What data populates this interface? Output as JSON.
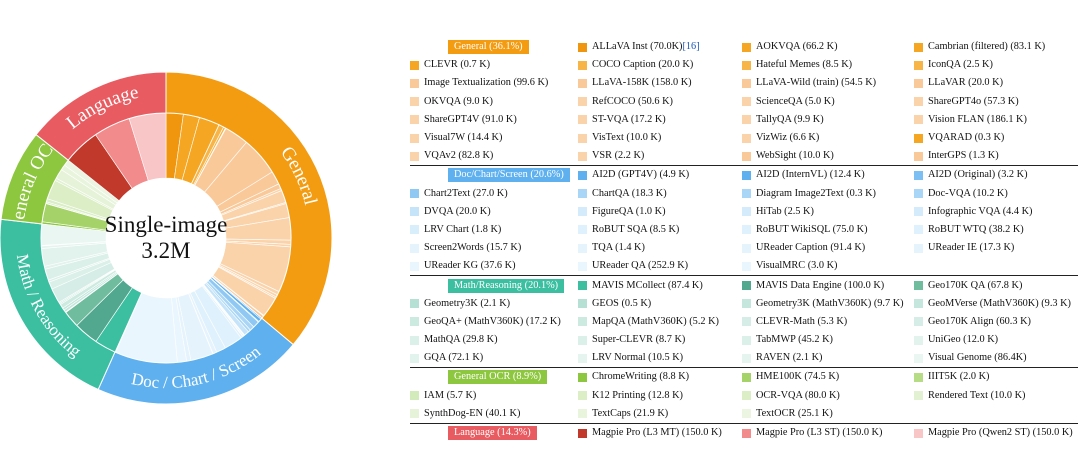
{
  "chart_data": {
    "type": "sunburst",
    "center_label": [
      "Single-image",
      "3.2M"
    ],
    "categories": [
      {
        "name": "General",
        "percent": 36.1,
        "header": "General (36.1%)",
        "color": "#f39c12",
        "ring_label": "General",
        "items": [
          {
            "name": "ALLaVA Inst",
            "size": "70.0K",
            "k": 70.0,
            "cite": "[16]",
            "color": "#f0960e"
          },
          {
            "name": "AOKVQA",
            "size": "66.2 K",
            "k": 66.2,
            "color": "#f5a623"
          },
          {
            "name": "Cambrian (filtered)",
            "size": "83.1 K",
            "k": 83.1,
            "color": "#f5a623"
          },
          {
            "name": "CLEVR",
            "size": "0.7 K",
            "k": 0.7,
            "color": "#f5a623"
          },
          {
            "name": "COCO Caption",
            "size": "20.0 K",
            "k": 20.0,
            "color": "#f7b548"
          },
          {
            "name": "Hateful Memes",
            "size": "8.5 K",
            "k": 8.5,
            "color": "#f7b548"
          },
          {
            "name": "IconQA",
            "size": "2.5 K",
            "k": 2.5,
            "color": "#f7b548"
          },
          {
            "name": "Image Textualization",
            "size": "99.6 K",
            "k": 99.6,
            "color": "#fac99a"
          },
          {
            "name": "LLaVA-158K",
            "size": "158.0 K",
            "k": 158.0,
            "color": "#fac99a"
          },
          {
            "name": "LLaVA-Wild (train)",
            "size": "54.5 K",
            "k": 54.5,
            "color": "#fac99a"
          },
          {
            "name": "LLaVAR",
            "size": "20.0 K",
            "k": 20.0,
            "color": "#fac99a"
          },
          {
            "name": "OKVQA",
            "size": "9.0 K",
            "k": 9.0,
            "color": "#fbd3ab"
          },
          {
            "name": "RefCOCO",
            "size": "50.6 K",
            "k": 50.6,
            "color": "#fbd3ab"
          },
          {
            "name": "ScienceQA",
            "size": "5.0 K",
            "k": 5.0,
            "color": "#fbd3ab"
          },
          {
            "name": "ShareGPT4o",
            "size": "57.3 K",
            "k": 57.3,
            "color": "#fbd3ab"
          },
          {
            "name": "ShareGPT4V",
            "size": "91.0 K",
            "k": 91.0,
            "color": "#fbd3ab"
          },
          {
            "name": "ST-VQA",
            "size": "17.2 K",
            "k": 17.2,
            "color": "#fbd3ab"
          },
          {
            "name": "TallyQA",
            "size": "9.9 K",
            "k": 9.9,
            "color": "#fbd3ab"
          },
          {
            "name": "Vision FLAN",
            "size": "186.1 K",
            "k": 186.1,
            "color": "#fbd3ab"
          },
          {
            "name": "Visual7W",
            "size": "14.4 K",
            "k": 14.4,
            "color": "#fbd3ab"
          },
          {
            "name": "VisText",
            "size": "10.0 K",
            "k": 10.0,
            "color": "#fbd3ab"
          },
          {
            "name": "VizWiz",
            "size": "6.6 K",
            "k": 6.6,
            "color": "#fbd3ab"
          },
          {
            "name": "VQARAD",
            "size": "0.3 K",
            "k": 0.3,
            "color": "#f5a623"
          },
          {
            "name": "VQAv2",
            "size": "82.8 K",
            "k": 82.8,
            "color": "#fbd3ab"
          },
          {
            "name": "VSR",
            "size": "2.2 K",
            "k": 2.2,
            "color": "#fbd3ab"
          },
          {
            "name": "WebSight",
            "size": "10.0 K",
            "k": 10.0,
            "color": "#fac99a"
          },
          {
            "name": "InterGPS",
            "size": "1.3 K",
            "k": 1.3,
            "color": "#fac99a"
          }
        ]
      },
      {
        "name": "Doc/Chart/Screen",
        "percent": 20.6,
        "header": "Doc/Chart/Screen (20.6%)",
        "color": "#5fb0ee",
        "ring_label": "Doc / Chart / Screen",
        "items": [
          {
            "name": "AI2D (GPT4V)",
            "size": "4.9 K",
            "k": 4.9,
            "color": "#5fb0ee"
          },
          {
            "name": "AI2D (InternVL)",
            "size": "12.4 K",
            "k": 12.4,
            "color": "#5fb0ee"
          },
          {
            "name": "AI2D (Original)",
            "size": "3.2 K",
            "k": 3.2,
            "color": "#7cbff2"
          },
          {
            "name": "Chart2Text",
            "size": "27.0 K",
            "k": 27.0,
            "color": "#8ec8f3"
          },
          {
            "name": "ChartQA",
            "size": "18.3 K",
            "k": 18.3,
            "color": "#a9d6f6"
          },
          {
            "name": "Diagram Image2Text",
            "size": "0.3 K",
            "k": 0.3,
            "color": "#a9d6f6"
          },
          {
            "name": "Doc-VQA",
            "size": "10.2 K",
            "k": 10.2,
            "color": "#a9d6f6"
          },
          {
            "name": "DVQA",
            "size": "20.0 K",
            "k": 20.0,
            "color": "#c6e4f9"
          },
          {
            "name": "FigureQA",
            "size": "1.0 K",
            "k": 1.0,
            "color": "#d3ebfb"
          },
          {
            "name": "HiTab",
            "size": "2.5 K",
            "k": 2.5,
            "color": "#d3ebfb"
          },
          {
            "name": "Infographic VQA",
            "size": "4.4 K",
            "k": 4.4,
            "color": "#d3ebfb"
          },
          {
            "name": "LRV Chart",
            "size": "1.8 K",
            "k": 1.8,
            "color": "#d9eefb"
          },
          {
            "name": "RoBUT SQA",
            "size": "8.5 K",
            "k": 8.5,
            "color": "#dff1fc"
          },
          {
            "name": "RoBUT WikiSQL",
            "size": "75.0 K",
            "k": 75.0,
            "color": "#dff1fc"
          },
          {
            "name": "RoBUT WTQ",
            "size": "38.2 K",
            "k": 38.2,
            "color": "#dff1fc"
          },
          {
            "name": "Screen2Words",
            "size": "15.7 K",
            "k": 15.7,
            "color": "#e5f3fc"
          },
          {
            "name": "TQA",
            "size": "1.4 K",
            "k": 1.4,
            "color": "#e5f3fc"
          },
          {
            "name": "UReader Caption",
            "size": "91.4 K",
            "k": 91.4,
            "color": "#e5f3fc"
          },
          {
            "name": "UReader IE",
            "size": "17.3 K",
            "k": 17.3,
            "color": "#e5f3fc"
          },
          {
            "name": "UReader KG",
            "size": "37.6 K",
            "k": 37.6,
            "color": "#eaf6fd"
          },
          {
            "name": "UReader QA",
            "size": "252.9 K",
            "k": 252.9,
            "color": "#eaf6fd"
          },
          {
            "name": "VisualMRC",
            "size": "3.0 K",
            "k": 3.0,
            "color": "#eaf6fd"
          }
        ]
      },
      {
        "name": "Math/Reasoning",
        "percent": 20.1,
        "header": "Math/Reasoning (20.1%)",
        "color": "#3bbfa0",
        "ring_label": "Math / Reasoning",
        "items": [
          {
            "name": "MAVIS MCollect",
            "size": "87.4 K",
            "k": 87.4,
            "color": "#3bbfa0"
          },
          {
            "name": "MAVIS Data Engine",
            "size": "100.0 K",
            "k": 100.0,
            "color": "#52a88f"
          },
          {
            "name": "Geo170K QA",
            "size": "67.8 K",
            "k": 67.8,
            "color": "#6fbc9e"
          },
          {
            "name": "Geometry3K",
            "size": "2.1 K",
            "k": 2.1,
            "color": "#b7e0d4"
          },
          {
            "name": "GEOS",
            "size": "0.5 K",
            "k": 0.5,
            "color": "#b7e0d4"
          },
          {
            "name": "Geometry3K (MathV360K)",
            "size": "9.7 K",
            "k": 9.7,
            "color": "#c4e6dc"
          },
          {
            "name": "GeoMVerse (MathV360K)",
            "size": "9.3 K",
            "k": 9.3,
            "color": "#c4e6dc"
          },
          {
            "name": "GeoQA+ (MathV360K)",
            "size": "17.2 K",
            "k": 17.2,
            "color": "#cdeae1"
          },
          {
            "name": "MapQA (MathV360K)",
            "size": "5.2 K",
            "k": 5.2,
            "color": "#cdeae1"
          },
          {
            "name": "CLEVR-Math",
            "size": "5.3 K",
            "k": 5.3,
            "color": "#d5ede6"
          },
          {
            "name": "Geo170K Align",
            "size": "60.3 K",
            "k": 60.3,
            "color": "#d5ede6"
          },
          {
            "name": "MathQA",
            "size": "29.8 K",
            "k": 29.8,
            "color": "#dcf0ea"
          },
          {
            "name": "Super-CLEVR",
            "size": "8.7 K",
            "k": 8.7,
            "color": "#dcf0ea"
          },
          {
            "name": "TabMWP",
            "size": "45.2 K",
            "k": 45.2,
            "color": "#dcf0ea"
          },
          {
            "name": "UniGeo",
            "size": "12.0 K",
            "k": 12.0,
            "color": "#e2f3ee"
          },
          {
            "name": "GQA",
            "size": "72.1 K",
            "k": 72.1,
            "color": "#e2f3ee"
          },
          {
            "name": "LRV Normal",
            "size": "10.5 K",
            "k": 10.5,
            "color": "#e6f4f0"
          },
          {
            "name": "RAVEN",
            "size": "2.1 K",
            "k": 2.1,
            "color": "#e6f4f0"
          },
          {
            "name": "Visual Genome",
            "size": "86.4K",
            "k": 86.4,
            "color": "#eaf6f2"
          }
        ]
      },
      {
        "name": "General OCR",
        "percent": 8.9,
        "header": "General OCR (8.9%)",
        "color": "#8dc63f",
        "ring_label": "General OCR",
        "items": [
          {
            "name": "ChromeWriting",
            "size": "8.8 K",
            "k": 8.8,
            "color": "#8dc63f"
          },
          {
            "name": "HME100K",
            "size": "74.5 K",
            "k": 74.5,
            "color": "#a5d36a"
          },
          {
            "name": "IIIT5K",
            "size": "2.0 K",
            "k": 2.0,
            "color": "#b7dc86"
          },
          {
            "name": "IAM",
            "size": "5.7 K",
            "k": 5.7,
            "color": "#d3eabb"
          },
          {
            "name": "K12 Printing",
            "size": "12.8 K",
            "k": 12.8,
            "color": "#dbeec6"
          },
          {
            "name": "OCR-VQA",
            "size": "80.0 K",
            "k": 80.0,
            "color": "#dbeec6"
          },
          {
            "name": "Rendered Text",
            "size": "10.0 K",
            "k": 10.0,
            "color": "#e2f1d2"
          },
          {
            "name": "SynthDog-EN",
            "size": "40.1 K",
            "k": 40.1,
            "color": "#e6f3d8"
          },
          {
            "name": "TextCaps",
            "size": "21.9 K",
            "k": 21.9,
            "color": "#e8f4dc"
          },
          {
            "name": "TextOCR",
            "size": "25.1 K",
            "k": 25.1,
            "color": "#ebf5e1"
          }
        ]
      },
      {
        "name": "Language",
        "percent": 14.3,
        "header": "Language (14.3%)",
        "color": "#e85c61",
        "ring_label": "Language",
        "items": [
          {
            "name": "Magpie Pro (L3 MT)",
            "size": "150.0 K",
            "k": 150.0,
            "color": "#c0392b"
          },
          {
            "name": "Magpie Pro (L3 ST)",
            "size": "150.0 K",
            "k": 150.0,
            "color": "#f28b8b"
          },
          {
            "name": "Magpie Pro (Qwen2 ST)",
            "size": "150.0 K",
            "k": 150.0,
            "color": "#f8c6c6"
          }
        ]
      }
    ]
  }
}
